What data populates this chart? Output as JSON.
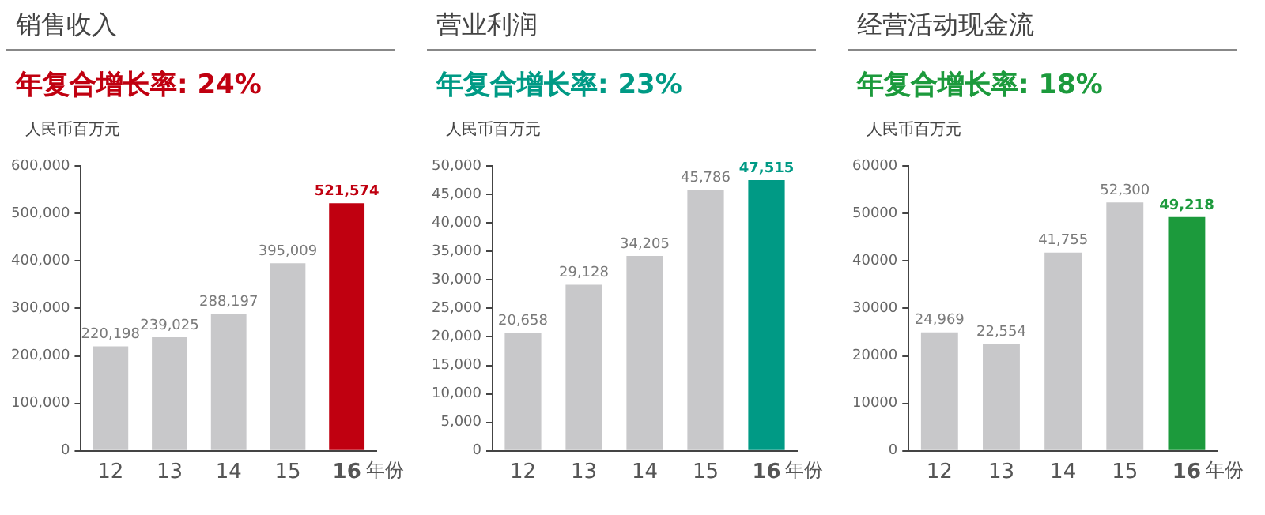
{
  "chart_data": [
    {
      "type": "bar",
      "title": "销售收入",
      "subtitle": "年复合增长率: 24%",
      "ylabel": "人民币百万元",
      "xlabel": "年份",
      "categories": [
        "12",
        "13",
        "14",
        "15",
        "16"
      ],
      "values": [
        220198,
        239025,
        288197,
        395009,
        521574
      ],
      "colors": [
        "#c8c8ca",
        "#c8c8ca",
        "#c8c8ca",
        "#c8c8ca",
        "#c00010"
      ],
      "ylim": [
        0,
        600000
      ],
      "yticks": [
        {
          "value": 0,
          "label": "0"
        },
        {
          "value": 100000,
          "label": "100,000"
        },
        {
          "value": 200000,
          "label": "200,000"
        },
        {
          "value": 300000,
          "label": "300,000"
        },
        {
          "value": 400000,
          "label": "400,000"
        },
        {
          "value": 500000,
          "label": "500,000"
        },
        {
          "value": 600000,
          "label": "600,000"
        }
      ],
      "value_labels": [
        "220,198",
        "239,025",
        "288,197",
        "395,009",
        "521,574"
      ],
      "grid": false,
      "legend": false
    },
    {
      "type": "bar",
      "title": "营业利润",
      "subtitle": "年复合增长率: 23%",
      "ylabel": "人民币百万元",
      "xlabel": "年份",
      "categories": [
        "12",
        "13",
        "14",
        "15",
        "16"
      ],
      "values": [
        20658,
        29128,
        34205,
        45786,
        47515
      ],
      "colors": [
        "#c8c8ca",
        "#c8c8ca",
        "#c8c8ca",
        "#c8c8ca",
        "#009a85"
      ],
      "ylim": [
        0,
        50000
      ],
      "yticks": [
        {
          "value": 0,
          "label": "0"
        },
        {
          "value": 5000,
          "label": "5,000"
        },
        {
          "value": 10000,
          "label": "10,000"
        },
        {
          "value": 15000,
          "label": "15,000"
        },
        {
          "value": 20000,
          "label": "20,000"
        },
        {
          "value": 25000,
          "label": "25,000"
        },
        {
          "value": 30000,
          "label": "30,000"
        },
        {
          "value": 35000,
          "label": "35,000"
        },
        {
          "value": 40000,
          "label": "40,000"
        },
        {
          "value": 45000,
          "label": "45,000"
        },
        {
          "value": 50000,
          "label": "50,000"
        }
      ],
      "value_labels": [
        "20,658",
        "29,128",
        "34,205",
        "45,786",
        "47,515"
      ],
      "grid": false,
      "legend": false
    },
    {
      "type": "bar",
      "title": "经营活动现金流",
      "subtitle": "年复合增长率: 18%",
      "ylabel": "人民币百万元",
      "xlabel": "年份",
      "categories": [
        "12",
        "13",
        "14",
        "15",
        "16"
      ],
      "values": [
        24969,
        22554,
        41755,
        52300,
        49218
      ],
      "colors": [
        "#c8c8ca",
        "#c8c8ca",
        "#c8c8ca",
        "#c8c8ca",
        "#1c9a3c"
      ],
      "ylim": [
        0,
        60000
      ],
      "yticks": [
        0,
        10000,
        20000,
        30000,
        40000,
        50000,
        60000
      ],
      "value_labels": [
        "24,969",
        "22,554",
        "41,755",
        "52,300",
        "49,218"
      ],
      "grid": false,
      "legend": false
    }
  ]
}
